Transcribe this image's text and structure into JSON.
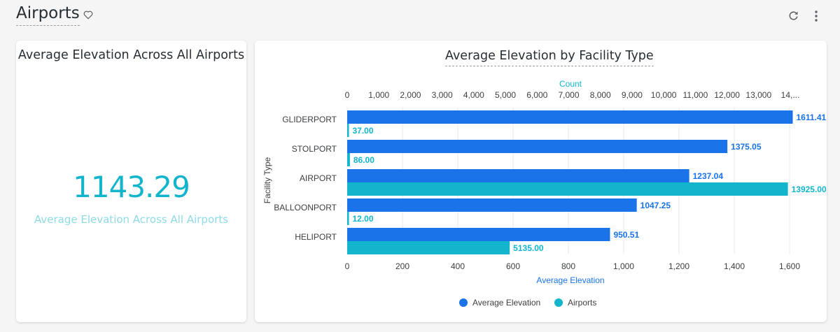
{
  "dashboard": {
    "title": "Airports"
  },
  "tiles": {
    "kpi": {
      "title": "Average Elevation Across All Airports",
      "value": "1143.29",
      "label": "Average Elevation Across All Airports"
    },
    "bar_chart": {
      "title": "Average Elevation by Facility Type"
    }
  },
  "colors": {
    "elevation": "#1a73e8",
    "airports": "#12b5cb",
    "kpi": "#12b5cb"
  },
  "icons": [
    "heart-icon",
    "reload-icon",
    "more-vert-icon"
  ],
  "chart_data": {
    "type": "bar",
    "orientation": "horizontal",
    "title": "Average Elevation by Facility Type",
    "categories": [
      "GLIDERPORT",
      "STOLPORT",
      "AIRPORT",
      "BALLOONPORT",
      "HELIPORT"
    ],
    "series": [
      {
        "name": "Average Elevation",
        "values": [
          1611.41,
          1375.05,
          1237.04,
          1047.25,
          950.51
        ],
        "labels": [
          "1611.41",
          "1375.05",
          "1237.04",
          "1047.25",
          "950.51"
        ],
        "axis": "bottom"
      },
      {
        "name": "Airports",
        "values": [
          37,
          86,
          13925,
          12,
          5135
        ],
        "labels": [
          "37.00",
          "86.00",
          "13925.00",
          "12.00",
          "5135.00"
        ],
        "axis": "top"
      }
    ],
    "ylabel": "Facility Type",
    "bottom_axis": {
      "label": "Average Elevation",
      "range": [
        0,
        1600
      ],
      "ticks": [
        "0",
        "200",
        "400",
        "600",
        "800",
        "1,000",
        "1,200",
        "1,400",
        "1,600"
      ]
    },
    "top_axis": {
      "label": "Count",
      "range": [
        0,
        14000
      ],
      "ticks": [
        "0",
        "1,000",
        "2,000",
        "3,000",
        "4,000",
        "5,000",
        "6,000",
        "7,000",
        "8,000",
        "9,000",
        "10,000",
        "11,000",
        "12,000",
        "13,000",
        "14,..."
      ]
    },
    "grid": true,
    "legend": "bottom"
  }
}
